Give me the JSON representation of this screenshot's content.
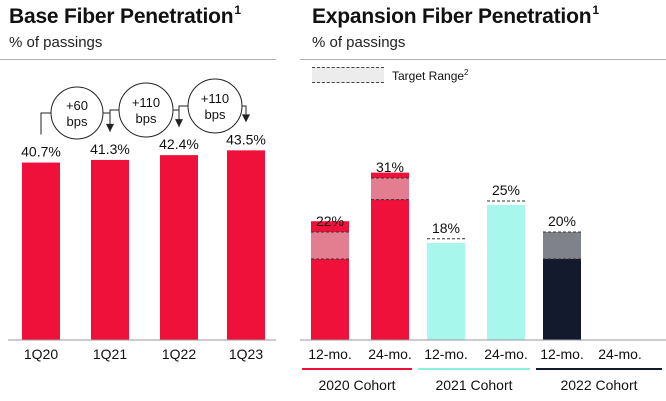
{
  "left_panel": {
    "title": "Base Fiber Penetration",
    "title_sup": "1",
    "subtitle": "% of passings"
  },
  "right_panel": {
    "title": "Expansion Fiber Penetration",
    "title_sup": "1",
    "subtitle": "% of passings"
  },
  "legend": {
    "label": "Target Range",
    "label_sup": "2"
  },
  "colors": {
    "red": "#f0113a",
    "aqua": "#a8f7ec",
    "navy": "#141a2e",
    "band": "#d9d9d9"
  },
  "chart_data": [
    {
      "type": "bar",
      "categories": [
        "1Q20",
        "1Q21",
        "1Q22",
        "1Q23"
      ],
      "values": [
        40.7,
        41.3,
        42.4,
        43.5
      ],
      "value_labels": [
        "40.7%",
        "41.3%",
        "42.4%",
        "43.5%"
      ],
      "annotations": [
        {
          "text": [
            "+60",
            "bps"
          ],
          "from": "1Q20",
          "to": "1Q21"
        },
        {
          "text": [
            "+110",
            "bps"
          ],
          "from": "1Q21",
          "to": "1Q22"
        },
        {
          "text": [
            "+110",
            "bps"
          ],
          "from": "1Q22",
          "to": "1Q23"
        }
      ]
    },
    {
      "type": "bar",
      "categories": [
        "12-mo.",
        "24-mo.",
        "12-mo.",
        "24-mo.",
        "12-mo.",
        "24-mo."
      ],
      "groups": [
        {
          "name": "2020 Cohort",
          "indices": [
            0,
            1
          ],
          "color": "#f0113a"
        },
        {
          "name": "2021 Cohort",
          "indices": [
            2,
            3
          ],
          "color": "#a8f7ec"
        },
        {
          "name": "2022 Cohort",
          "indices": [
            4
          ],
          "color": "#141a2e"
        }
      ],
      "values": [
        22,
        31,
        18,
        25,
        20,
        null
      ],
      "value_labels": [
        "22%",
        "31%",
        "18%",
        "25%",
        "20%",
        ""
      ],
      "target_ranges": [
        [
          15,
          20
        ],
        [
          26,
          30
        ],
        [
          null,
          18
        ],
        [
          null,
          25
        ],
        [
          15,
          20
        ],
        null
      ]
    }
  ]
}
